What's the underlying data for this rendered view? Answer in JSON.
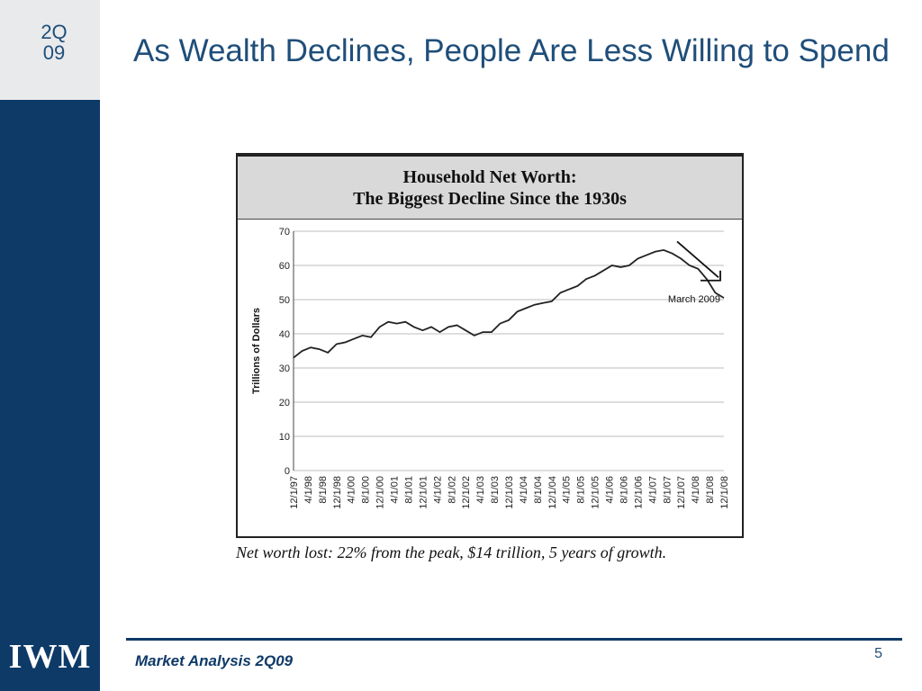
{
  "sidebar": {
    "quarter_line1": "2Q",
    "quarter_line2": "09",
    "logo": "IWM"
  },
  "slide": {
    "title": "As Wealth Declines, People Are Less Willing to Spend",
    "caption": "Net worth lost: 22% from the peak, $14 trillion, 5 years of growth.",
    "footer": "Market Analysis 2Q09",
    "page_number": "5"
  },
  "chart_data": {
    "type": "line",
    "title": "Household Net Worth:",
    "subtitle": "The Biggest Decline Since the 1930s",
    "xlabel": "",
    "ylabel": "Trillions of Dollars",
    "ylim": [
      0,
      70
    ],
    "yticks": [
      0,
      10,
      20,
      30,
      40,
      50,
      60,
      70
    ],
    "grid": true,
    "annotation": "March 2009",
    "x_tick_labels": [
      "12/1/97",
      "4/1/98",
      "8/1/98",
      "12/1/98",
      "4/1/00",
      "8/1/00",
      "12/1/00",
      "4/1/01",
      "8/1/01",
      "12/1/01",
      "4/1/02",
      "8/1/02",
      "12/1/02",
      "4/1/03",
      "8/1/03",
      "12/1/03",
      "4/1/04",
      "8/1/04",
      "12/1/04",
      "4/1/05",
      "8/1/05",
      "12/1/05",
      "4/1/06",
      "8/1/06",
      "12/1/06",
      "4/1/07",
      "8/1/07",
      "12/1/07",
      "4/1/08",
      "8/1/08",
      "12/1/08"
    ],
    "series": [
      {
        "values": [
          33,
          35,
          36,
          35.5,
          34.5,
          37,
          37.5,
          38.5,
          39.5,
          39,
          42,
          43.5,
          43,
          43.5,
          42,
          41,
          42,
          40.5,
          42,
          42.5,
          41,
          39.5,
          40.5,
          40.5,
          43,
          44,
          46.5,
          47.5,
          48.5,
          49,
          49.5,
          52,
          53,
          54,
          56,
          57,
          58.5,
          60,
          59.5,
          60,
          62,
          63,
          64,
          64.5,
          63.5,
          62,
          60,
          59,
          56,
          52,
          50.5
        ]
      }
    ]
  }
}
